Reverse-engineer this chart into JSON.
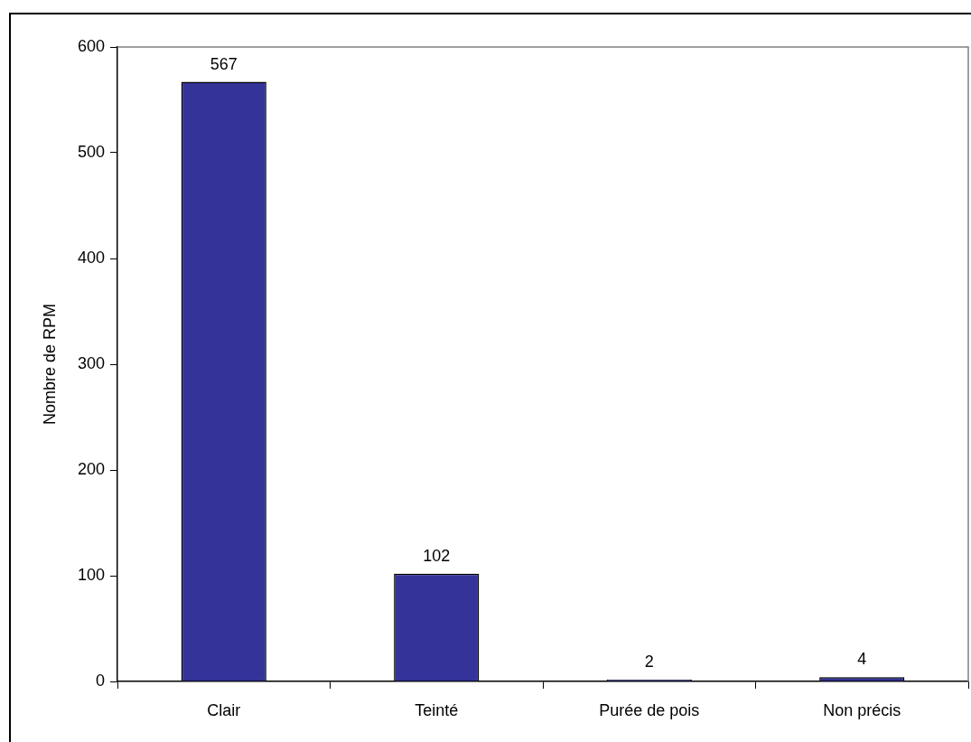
{
  "chart_data": {
    "type": "bar",
    "ylabel": "Nombre de RPM",
    "categories": [
      "Clair",
      "Teinté",
      "Purée de pois",
      "Non précis"
    ],
    "values": [
      567,
      102,
      2,
      4
    ],
    "color": "#333399",
    "ylim": [
      0,
      600
    ],
    "yticks": [
      0,
      100,
      200,
      300,
      400,
      500,
      600
    ],
    "grid": false,
    "legend": false,
    "data_labels": true
  }
}
